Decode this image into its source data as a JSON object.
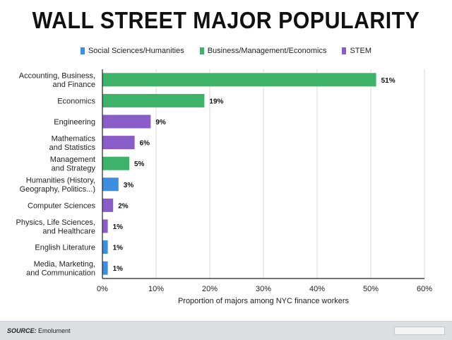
{
  "title": "WALL STREET MAJOR POPULARITY",
  "legend": [
    {
      "name": "Social Sciences/Humanities",
      "color": "#3b8fde"
    },
    {
      "name": "Business/Management/Economics",
      "color": "#3db36a"
    },
    {
      "name": "STEM",
      "color": "#8a5cc7"
    }
  ],
  "chart_data": {
    "type": "bar",
    "orientation": "horizontal",
    "categories": [
      "Accounting, Business,\nand Finance",
      "Economics",
      "Engineering",
      "Mathematics\nand Statistics",
      "Management\nand Strategy",
      "Humanities (History,\nGeography, Politics...)",
      "Computer Sciences",
      "Physics, Life Sciences,\nand Healthcare",
      "English Literature",
      "Media, Marketing,\nand Communication"
    ],
    "values": [
      51,
      19,
      9,
      6,
      5,
      3,
      2,
      1,
      1,
      1
    ],
    "value_labels": [
      "51%",
      "19%",
      "9%",
      "6%",
      "5%",
      "3%",
      "2%",
      "1%",
      "1%",
      "1%"
    ],
    "groups": [
      "Business/Management/Economics",
      "Business/Management/Economics",
      "STEM",
      "STEM",
      "Business/Management/Economics",
      "Social Sciences/Humanities",
      "STEM",
      "STEM",
      "Social Sciences/Humanities",
      "Social Sciences/Humanities"
    ],
    "xlabel": "Proportion of majors among NYC finance workers",
    "xlim": [
      0,
      60
    ],
    "xticks": [
      0,
      10,
      20,
      30,
      40,
      50,
      60
    ],
    "xtick_labels": [
      "0%",
      "10%",
      "20%",
      "30%",
      "40%",
      "50%",
      "60%"
    ],
    "grid": true,
    "legend_position": "top"
  },
  "footer": {
    "source_label": "SOURCE:",
    "source_text": "Emolument"
  }
}
